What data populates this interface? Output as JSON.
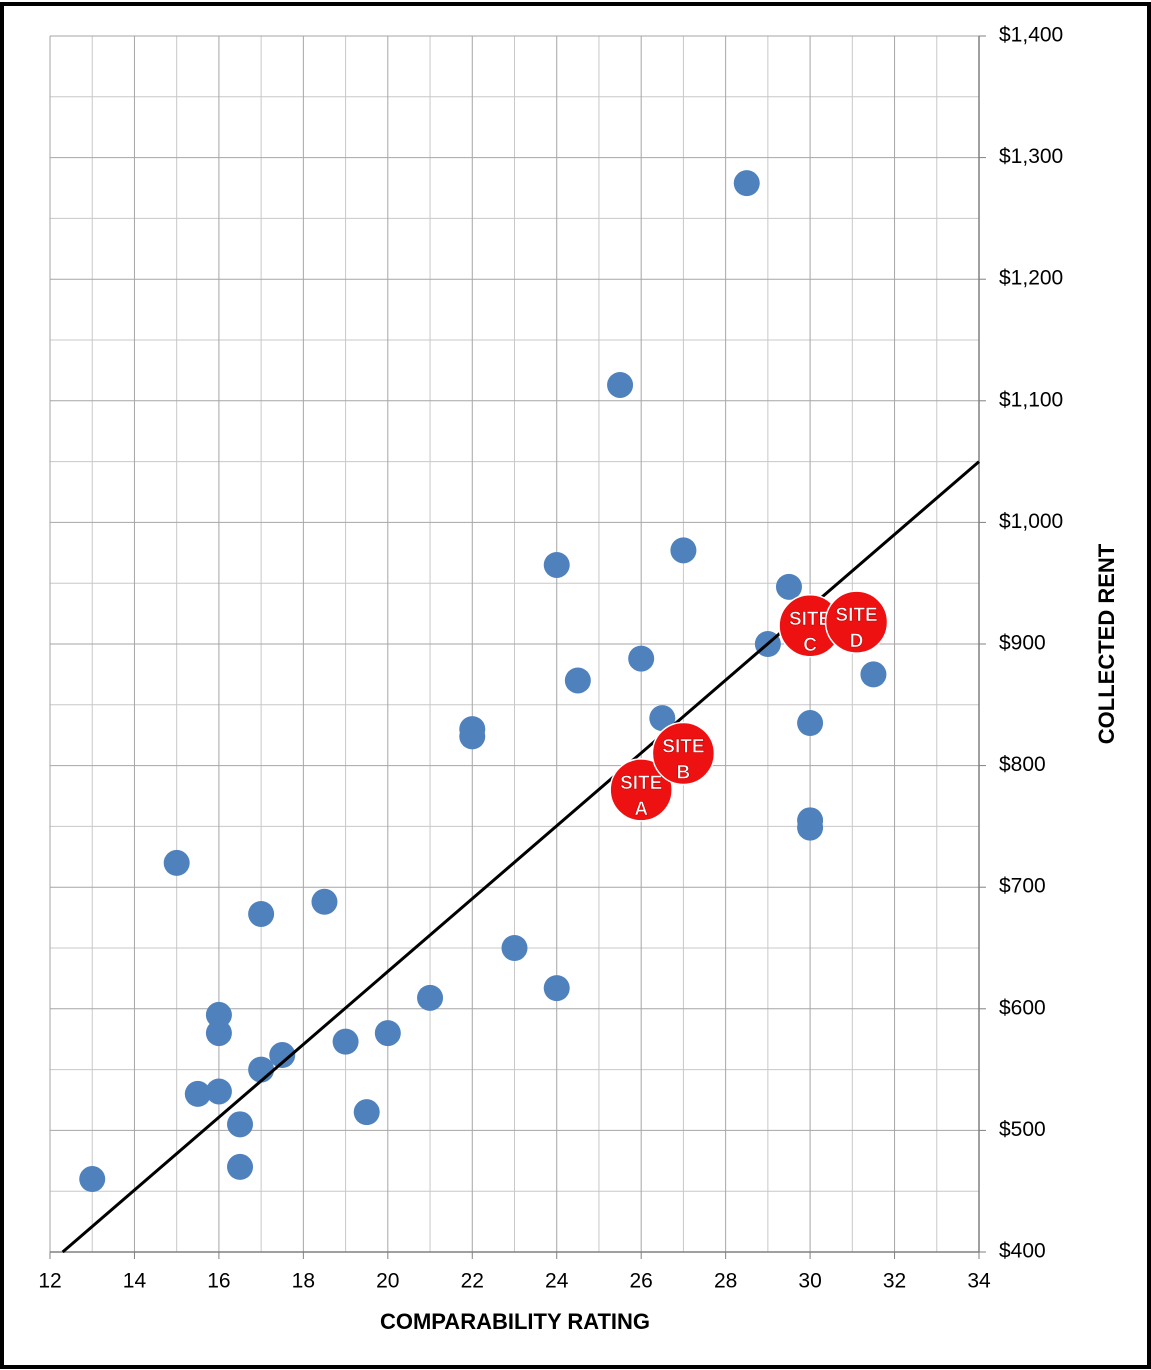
{
  "chart_data": {
    "type": "scatter",
    "xlabel": "COMPARABILITY RATING",
    "ylabel": "COLLECTED RENT",
    "xlim": [
      12,
      34
    ],
    "xticks": [
      12,
      14,
      16,
      18,
      20,
      22,
      24,
      26,
      28,
      30,
      32,
      34
    ],
    "ylim": [
      400,
      1400
    ],
    "yticks": [
      {
        "value": 400,
        "label": "$400"
      },
      {
        "value": 500,
        "label": "$500"
      },
      {
        "value": 600,
        "label": "$600"
      },
      {
        "value": 700,
        "label": "$700"
      },
      {
        "value": 800,
        "label": "$800"
      },
      {
        "value": 900,
        "label": "$900"
      },
      {
        "value": 1000,
        "label": "$1,000"
      },
      {
        "value": 1100,
        "label": "$1,100"
      },
      {
        "value": 1200,
        "label": "$1,200"
      },
      {
        "value": 1300,
        "label": "$1,300"
      },
      {
        "value": 1400,
        "label": "$1,400"
      }
    ],
    "grid": true,
    "minor_grid": true,
    "series": [
      {
        "color": "#4f81bd",
        "x": [
          13,
          15,
          15.5,
          16,
          16,
          16,
          16.5,
          16.5,
          17,
          17,
          17.5,
          18.5,
          19,
          19.5,
          20,
          21,
          22,
          22,
          23,
          24,
          24,
          24.5,
          25.5,
          26,
          26.5,
          27,
          28.5,
          29,
          29.5,
          30,
          30,
          30,
          31.5
        ],
        "values": [
          460,
          720,
          530,
          595,
          580,
          532,
          505,
          470,
          678,
          550,
          562,
          688,
          573,
          515,
          580,
          609,
          830,
          824,
          650,
          965,
          617,
          870,
          1113,
          888,
          839,
          977,
          1279,
          900,
          947,
          835,
          755,
          749,
          875
        ]
      },
      {
        "color": "#ee1111",
        "x": [
          26,
          27,
          30,
          31.1
        ],
        "values": [
          780,
          810,
          915,
          918
        ],
        "point_labels": [
          [
            "SITE",
            "A"
          ],
          [
            "SITE",
            "B"
          ],
          [
            "SITE",
            "C"
          ],
          [
            "SITE",
            "D"
          ]
        ]
      }
    ],
    "trendline": {
      "color": "#000000",
      "x": [
        12.3,
        34
      ],
      "y": [
        400,
        1050
      ]
    }
  }
}
